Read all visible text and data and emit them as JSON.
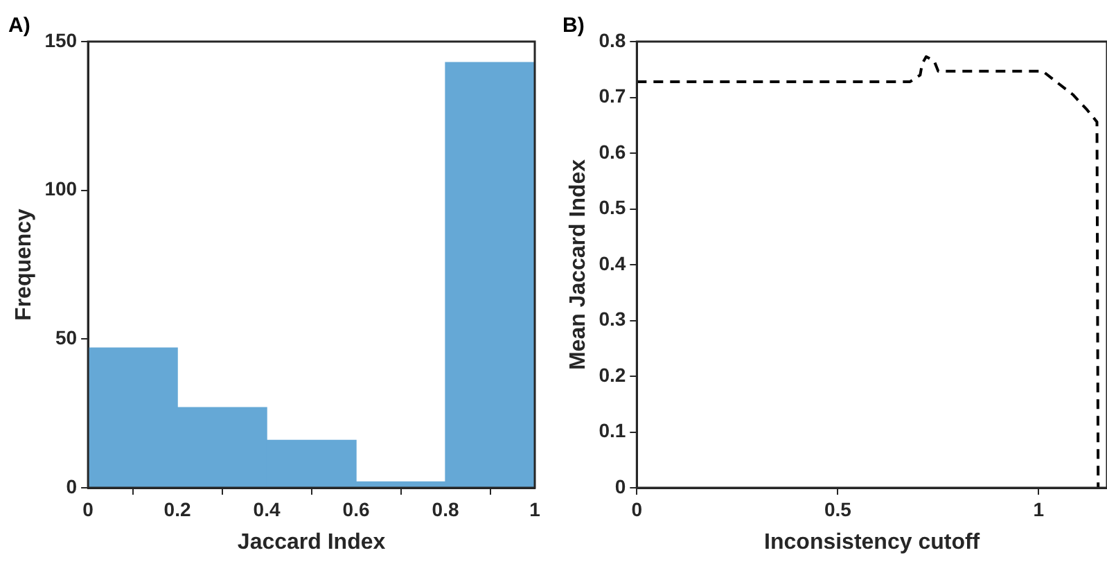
{
  "chart_data": [
    {
      "type": "histogram",
      "title": "A)",
      "xlabel": "Jaccard Index",
      "ylabel": "Frequency",
      "bins": [
        0,
        0.2,
        0.4,
        0.6,
        0.8,
        1
      ],
      "values": [
        47,
        27,
        16,
        2,
        143
      ],
      "color": "#65a8d6",
      "xlim": [
        0,
        1
      ],
      "xticks": [
        0,
        0.2,
        0.4,
        0.6,
        0.8,
        1
      ],
      "ylim": [
        0,
        150
      ],
      "yticks": [
        0,
        50,
        100,
        150
      ],
      "grid": false
    },
    {
      "type": "line",
      "title": "B)",
      "xlabel": "Inconsistency cutoff",
      "ylabel": "Mean Jaccard Index",
      "series": [
        {
          "color": "#000000",
          "line_style": "dashed",
          "x": [
            0,
            0.68,
            0.705,
            0.71,
            0.72,
            0.74,
            0.75,
            1.01,
            1.04,
            1.085,
            1.12,
            1.145,
            1.148
          ],
          "values": [
            0.728,
            0.728,
            0.74,
            0.76,
            0.773,
            0.765,
            0.747,
            0.747,
            0.73,
            0.705,
            0.678,
            0.656,
            0
          ]
        }
      ],
      "marker": "none",
      "xlim": [
        0,
        1.17
      ],
      "xticks": [
        0,
        0.5,
        1
      ],
      "ylim": [
        0,
        0.8
      ],
      "yticks": [
        0,
        0.1,
        0.2,
        0.3,
        0.4,
        0.5,
        0.6,
        0.7,
        0.8
      ],
      "grid": false
    }
  ]
}
